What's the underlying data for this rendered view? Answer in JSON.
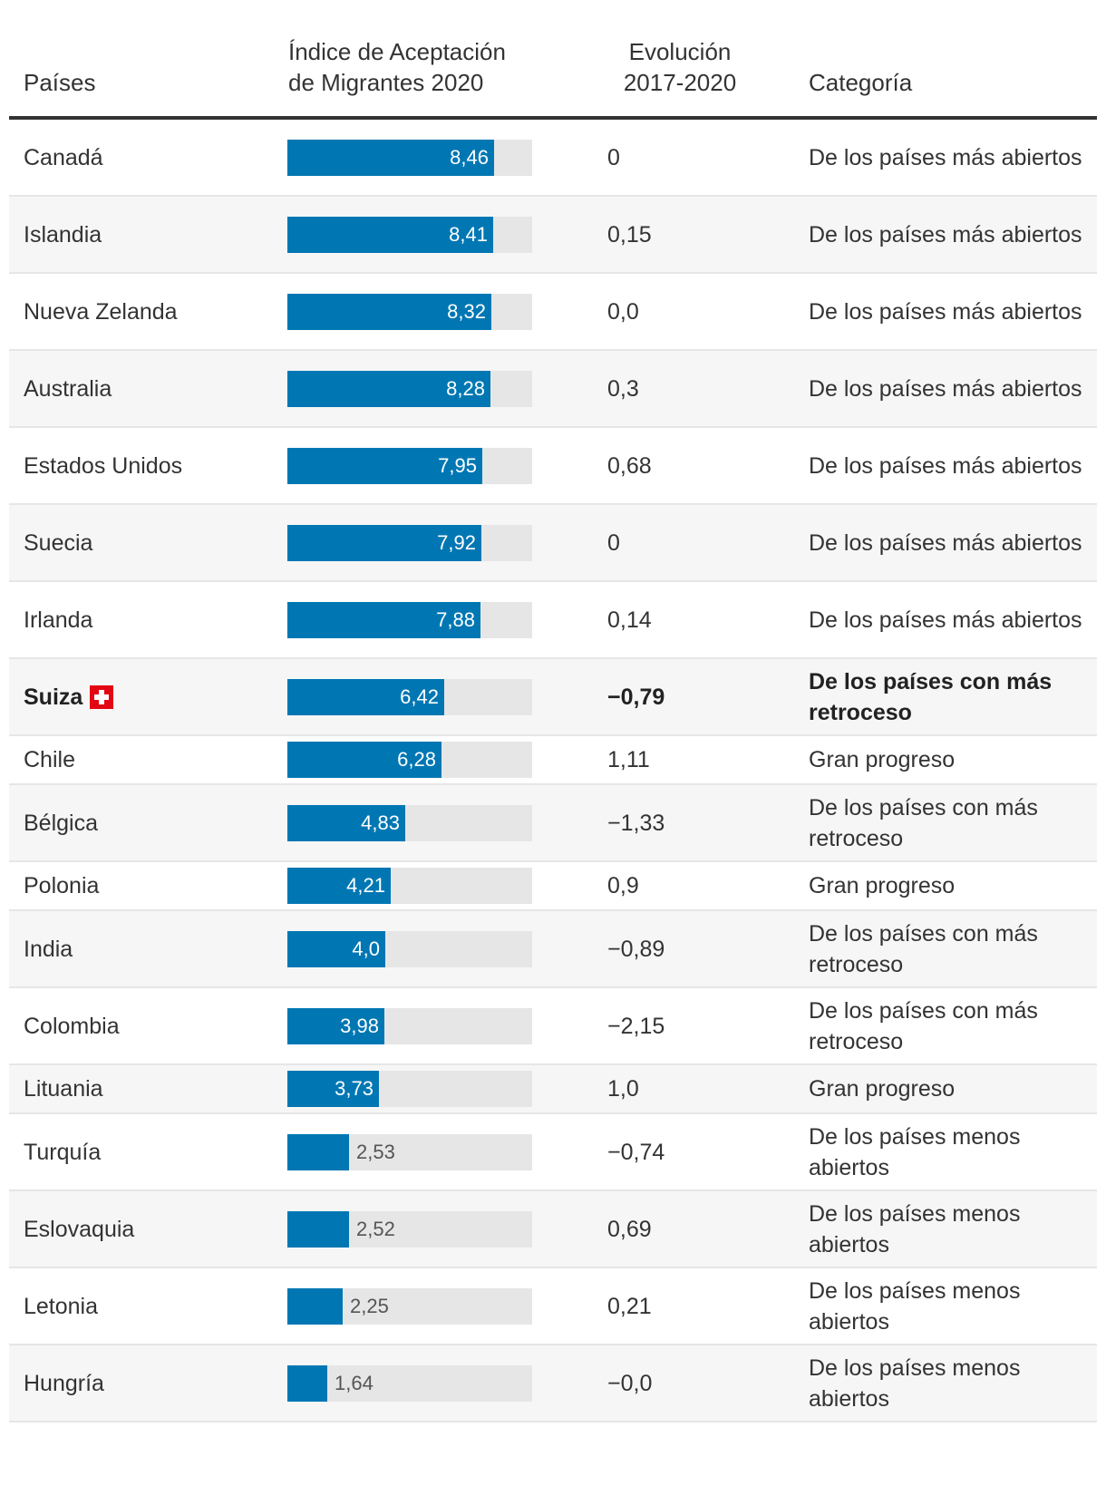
{
  "chart_data": {
    "type": "table",
    "title": "",
    "max_value": 10,
    "columns": [
      "Países",
      "Índice de Aceptación de Migrantes 2020",
      "Evolución 2017-2020",
      "Categoría"
    ],
    "highlight_color": "#0077b3",
    "rows": [
      {
        "country": "Canadá",
        "value": 8.46,
        "value_label": "8,46",
        "evolution": "0",
        "category": "De los países más abiertos"
      },
      {
        "country": "Islandia",
        "value": 8.41,
        "value_label": "8,41",
        "evolution": "0,15",
        "category": "De los países más abiertos"
      },
      {
        "country": "Nueva Zelanda",
        "value": 8.32,
        "value_label": "8,32",
        "evolution": "0,0",
        "category": "De los países más abiertos"
      },
      {
        "country": "Australia",
        "value": 8.28,
        "value_label": "8,28",
        "evolution": "0,3",
        "category": "De los países más abiertos"
      },
      {
        "country": "Estados Unidos",
        "value": 7.95,
        "value_label": "7,95",
        "evolution": "0,68",
        "category": "De los países más abiertos"
      },
      {
        "country": "Suecia",
        "value": 7.92,
        "value_label": "7,92",
        "evolution": "0",
        "category": "De los países más abiertos"
      },
      {
        "country": "Irlanda",
        "value": 7.88,
        "value_label": "7,88",
        "evolution": "0,14",
        "category": "De los países más abiertos"
      },
      {
        "country": "Suiza",
        "value": 6.42,
        "value_label": "6,42",
        "evolution": "−0,79",
        "category": "De los países con más retroceso",
        "highlight": true,
        "flag": "swiss-flag-icon"
      },
      {
        "country": "Chile",
        "value": 6.28,
        "value_label": "6,28",
        "evolution": "1,11",
        "category": "Gran progreso"
      },
      {
        "country": "Bélgica",
        "value": 4.83,
        "value_label": "4,83",
        "evolution": "−1,33",
        "category": "De los países con más retroceso"
      },
      {
        "country": "Polonia",
        "value": 4.21,
        "value_label": "4,21",
        "evolution": "0,9",
        "category": "Gran progreso"
      },
      {
        "country": "India",
        "value": 4.0,
        "value_label": "4,0",
        "evolution": "−0,89",
        "category": "De los países con más retroceso"
      },
      {
        "country": "Colombia",
        "value": 3.98,
        "value_label": "3,98",
        "evolution": "−2,15",
        "category": "De los países con más retroceso"
      },
      {
        "country": "Lituania",
        "value": 3.73,
        "value_label": "3,73",
        "evolution": "1,0",
        "category": "Gran progreso"
      },
      {
        "country": "Turquía",
        "value": 2.53,
        "value_label": "2,53",
        "evolution": "−0,74",
        "category": "De los países menos abiertos"
      },
      {
        "country": "Eslovaquia",
        "value": 2.52,
        "value_label": "2,52",
        "evolution": "0,69",
        "category": "De los países menos abiertos"
      },
      {
        "country": "Letonia",
        "value": 2.25,
        "value_label": "2,25",
        "evolution": "0,21",
        "category": "De los países menos abiertos"
      },
      {
        "country": "Hungría",
        "value": 1.64,
        "value_label": "1,64",
        "evolution": "−0,0",
        "category": "De los países menos abiertos"
      }
    ]
  },
  "header": {
    "country": "Países",
    "index_line1": "Índice de Aceptación",
    "index_line2": "de Migrantes 2020",
    "evol_line1": "Evolución",
    "evol_line2": "2017-2020",
    "category": "Categoría"
  }
}
